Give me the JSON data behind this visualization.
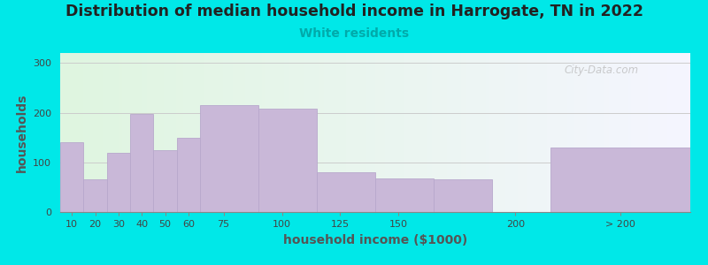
{
  "title": "Distribution of median household income in Harrogate, TN in 2022",
  "subtitle": "White residents",
  "xlabel": "household income ($1000)",
  "ylabel": "households",
  "bar_labels": [
    "10",
    "20",
    "30",
    "40",
    "50",
    "60",
    "75",
    "100",
    "125",
    "150",
    "200",
    "> 200"
  ],
  "bar_values": [
    140,
    65,
    120,
    198,
    125,
    150,
    215,
    208,
    80,
    68,
    65,
    130
  ],
  "bar_color": "#c9b8d8",
  "bar_edgecolor": "#b8a8cc",
  "background_color": "#00e8e8",
  "plot_bg_color_left": "#dff5e0",
  "plot_bg_color_right": "#f5f5ff",
  "title_fontsize": 12.5,
  "title_color": "#222222",
  "subtitle_color": "#00aaaa",
  "subtitle_fontsize": 10,
  "ylabel_color": "#555555",
  "xlabel_color": "#555555",
  "yticks": [
    0,
    100,
    200,
    300
  ],
  "ylim": [
    0,
    320
  ],
  "watermark": "City-Data.com",
  "bar_lefts": [
    5,
    15,
    25,
    35,
    45,
    55,
    65,
    90,
    115,
    140,
    165,
    215
  ],
  "bar_widths": [
    10,
    10,
    10,
    10,
    10,
    10,
    25,
    25,
    25,
    25,
    25,
    60
  ]
}
